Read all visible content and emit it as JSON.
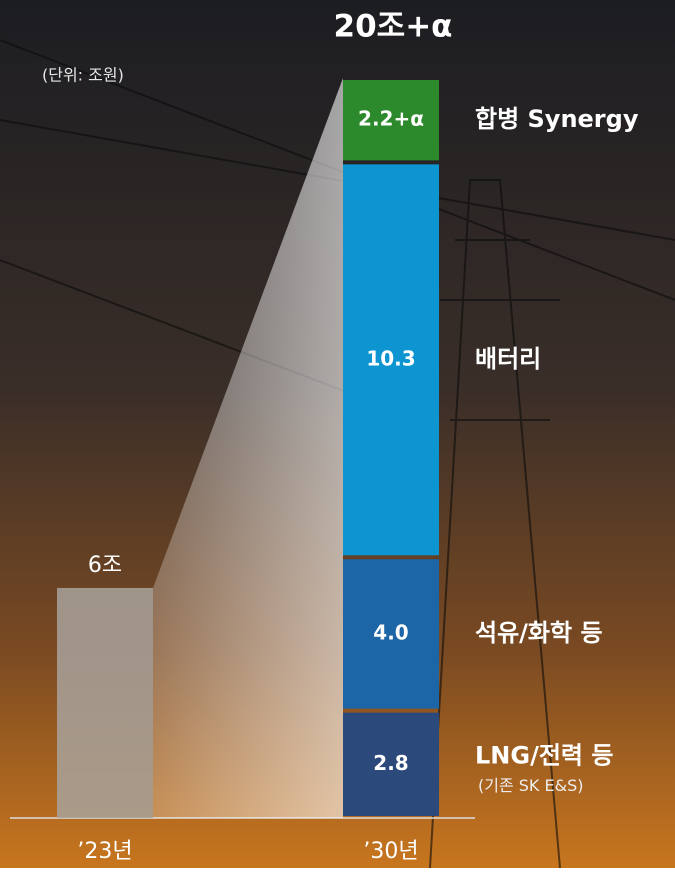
{
  "chart_data": {
    "type": "stacked-bar",
    "title": "20조+α",
    "unit": "(단위: 조원)",
    "categories": [
      "’23년",
      "’30년"
    ],
    "totals": {
      "color": "#a8a29b",
      "values": [
        6,
        null
      ],
      "value_labels": [
        "6조",
        null
      ]
    },
    "series": [
      {
        "name": "LNG/전력 등",
        "note": "(기존 SK E&S)",
        "color": "#2c497c",
        "values": [
          null,
          2.8
        ],
        "value_labels": [
          null,
          "2.8"
        ]
      },
      {
        "name": "석유/화학 등",
        "color": "#1c65a6",
        "values": [
          null,
          4.0
        ],
        "value_labels": [
          null,
          "4.0"
        ]
      },
      {
        "name": "배터리",
        "color": "#0c95d0",
        "values": [
          null,
          10.3
        ],
        "value_labels": [
          null,
          "10.3"
        ]
      },
      {
        "name": "합병 Synergy",
        "color": "#2d8a2c",
        "values": [
          null,
          2.2
        ],
        "value_labels": [
          null,
          "2.2+α"
        ]
      }
    ]
  }
}
